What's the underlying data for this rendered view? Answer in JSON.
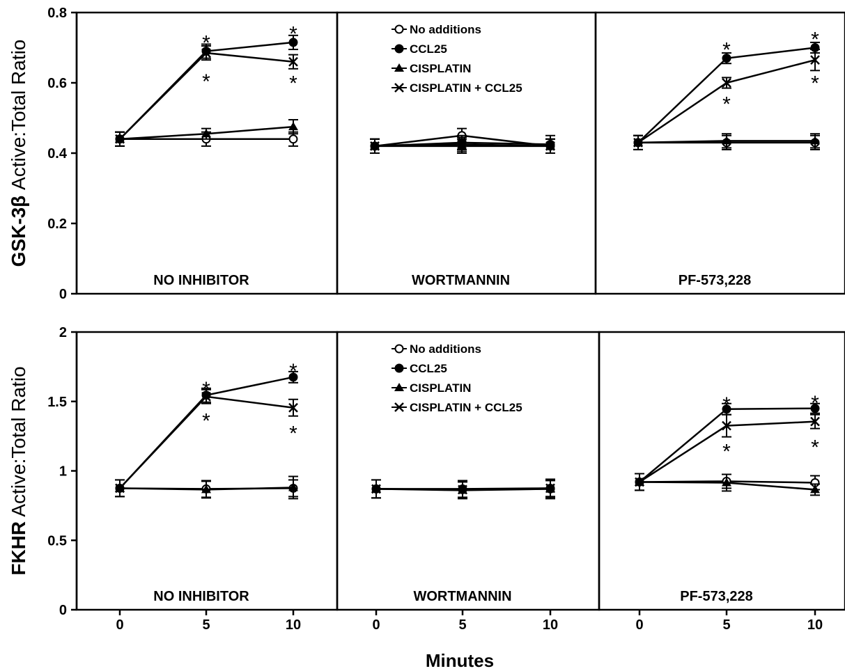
{
  "chart_data": {
    "type": "line",
    "xlabel": "Minutes",
    "legend_location": "inside-center-panel",
    "legend": [
      {
        "name": "No additions",
        "marker": "open-circle"
      },
      {
        "name": "CCL25",
        "marker": "filled-circle"
      },
      {
        "name": "CISPLATIN",
        "marker": "triangle"
      },
      {
        "name": "CISPLATIN + CCL25",
        "marker": "cross"
      }
    ],
    "x": [
      0,
      5,
      10
    ],
    "rows": [
      {
        "ylabel_bold": "GSK-3β",
        "ylabel_rest": " Active:Total Ratio",
        "ylim": [
          0,
          0.8
        ],
        "yticks": [
          "0",
          "0.2",
          "0.4",
          "0.6",
          "0.8"
        ],
        "panels": [
          {
            "title": "NO INHIBITOR",
            "series": [
              {
                "name": "No additions",
                "values": [
                  0.44,
                  0.44,
                  0.44
                ],
                "err": [
                  0.02,
                  0.02,
                  0.02
                ]
              },
              {
                "name": "CCL25",
                "values": [
                  0.44,
                  0.69,
                  0.715
                ],
                "err": [
                  0.02,
                  0.02,
                  0.02
                ]
              },
              {
                "name": "CISPLATIN",
                "values": [
                  0.44,
                  0.455,
                  0.475
                ],
                "err": [
                  0.02,
                  0.015,
                  0.02
                ]
              },
              {
                "name": "CISPLATIN + CCL25",
                "values": [
                  0.44,
                  0.685,
                  0.66
                ],
                "err": [
                  0.02,
                  0.02,
                  0.02
                ]
              }
            ],
            "stars": [
              {
                "x": 5,
                "y": 0.73
              },
              {
                "x": 5,
                "y": 0.62
              },
              {
                "x": 10,
                "y": 0.755
              },
              {
                "x": 10,
                "y": 0.615
              }
            ]
          },
          {
            "title": "WORTMANNIN",
            "series": [
              {
                "name": "No additions",
                "values": [
                  0.42,
                  0.45,
                  0.42
                ],
                "err": [
                  0.02,
                  0.02,
                  0.02
                ]
              },
              {
                "name": "CCL25",
                "values": [
                  0.42,
                  0.43,
                  0.425
                ],
                "err": [
                  0.02,
                  0.02,
                  0.025
                ]
              },
              {
                "name": "CISPLATIN",
                "values": [
                  0.42,
                  0.42,
                  0.42
                ],
                "err": [
                  0.02,
                  0.02,
                  0.02
                ]
              },
              {
                "name": "CISPLATIN + CCL25",
                "values": [
                  0.42,
                  0.425,
                  0.42
                ],
                "err": [
                  0.02,
                  0.02,
                  0.02
                ]
              }
            ],
            "stars": []
          },
          {
            "title": "PF-573,228",
            "series": [
              {
                "name": "No additions",
                "values": [
                  0.43,
                  0.43,
                  0.43
                ],
                "err": [
                  0.02,
                  0.02,
                  0.02
                ]
              },
              {
                "name": "CCL25",
                "values": [
                  0.43,
                  0.67,
                  0.7
                ],
                "err": [
                  0.02,
                  0.015,
                  0.015
                ]
              },
              {
                "name": "CISPLATIN",
                "values": [
                  0.43,
                  0.435,
                  0.435
                ],
                "err": [
                  0.02,
                  0.02,
                  0.02
                ]
              },
              {
                "name": "CISPLATIN + CCL25",
                "values": [
                  0.43,
                  0.6,
                  0.665
                ],
                "err": [
                  0.02,
                  0.015,
                  0.03
                ]
              }
            ],
            "stars": [
              {
                "x": 5,
                "y": 0.71
              },
              {
                "x": 5,
                "y": 0.555
              },
              {
                "x": 10,
                "y": 0.74
              },
              {
                "x": 10,
                "y": 0.615
              }
            ]
          }
        ]
      },
      {
        "ylabel_bold": "FKHR",
        "ylabel_rest": " Active:Total Ratio",
        "ylim": [
          0,
          2
        ],
        "yticks": [
          "0",
          "0.5",
          "1",
          "1.5",
          "2"
        ],
        "panels": [
          {
            "title": "NO INHIBITOR",
            "series": [
              {
                "name": "No additions",
                "values": [
                  0.875,
                  0.87,
                  0.875
                ],
                "err": [
                  0.06,
                  0.06,
                  0.06
                ]
              },
              {
                "name": "CCL25",
                "values": [
                  0.875,
                  1.545,
                  1.675
                ],
                "err": [
                  0.06,
                  0.05,
                  0.04
                ]
              },
              {
                "name": "CISPLATIN",
                "values": [
                  0.875,
                  0.865,
                  0.88
                ],
                "err": [
                  0.06,
                  0.06,
                  0.08
                ]
              },
              {
                "name": "CISPLATIN + CCL25",
                "values": [
                  0.875,
                  1.535,
                  1.455
                ],
                "err": [
                  0.06,
                  0.05,
                  0.06
                ]
              }
            ],
            "stars": [
              {
                "x": 5,
                "y": 1.63
              },
              {
                "x": 5,
                "y": 1.4
              },
              {
                "x": 10,
                "y": 1.76
              },
              {
                "x": 10,
                "y": 1.31
              }
            ]
          },
          {
            "title": "WORTMANNIN",
            "series": [
              {
                "name": "No additions",
                "values": [
                  0.87,
                  0.87,
                  0.875
                ],
                "err": [
                  0.065,
                  0.06,
                  0.06
                ]
              },
              {
                "name": "CCL25",
                "values": [
                  0.87,
                  0.865,
                  0.87
                ],
                "err": [
                  0.065,
                  0.06,
                  0.07
                ]
              },
              {
                "name": "CISPLATIN",
                "values": [
                  0.87,
                  0.86,
                  0.87
                ],
                "err": [
                  0.065,
                  0.06,
                  0.06
                ]
              },
              {
                "name": "CISPLATIN + CCL25",
                "values": [
                  0.87,
                  0.865,
                  0.875
                ],
                "err": [
                  0.065,
                  0.06,
                  0.06
                ]
              }
            ],
            "stars": []
          },
          {
            "title": "PF-573,228",
            "series": [
              {
                "name": "No additions",
                "values": [
                  0.92,
                  0.925,
                  0.915
                ],
                "err": [
                  0.06,
                  0.05,
                  0.05
                ]
              },
              {
                "name": "CCL25",
                "values": [
                  0.92,
                  1.445,
                  1.45
                ],
                "err": [
                  0.06,
                  0.04,
                  0.035
                ]
              },
              {
                "name": "CISPLATIN",
                "values": [
                  0.92,
                  0.915,
                  0.865
                ],
                "err": [
                  0.06,
                  0.06,
                  0.04
                ]
              },
              {
                "name": "CISPLATIN + CCL25",
                "values": [
                  0.92,
                  1.325,
                  1.355
                ],
                "err": [
                  0.06,
                  0.08,
                  0.05
                ]
              }
            ],
            "stars": [
              {
                "x": 5,
                "y": 1.52
              },
              {
                "x": 5,
                "y": 1.18
              },
              {
                "x": 10,
                "y": 1.53
              },
              {
                "x": 10,
                "y": 1.21
              }
            ]
          }
        ]
      }
    ]
  }
}
